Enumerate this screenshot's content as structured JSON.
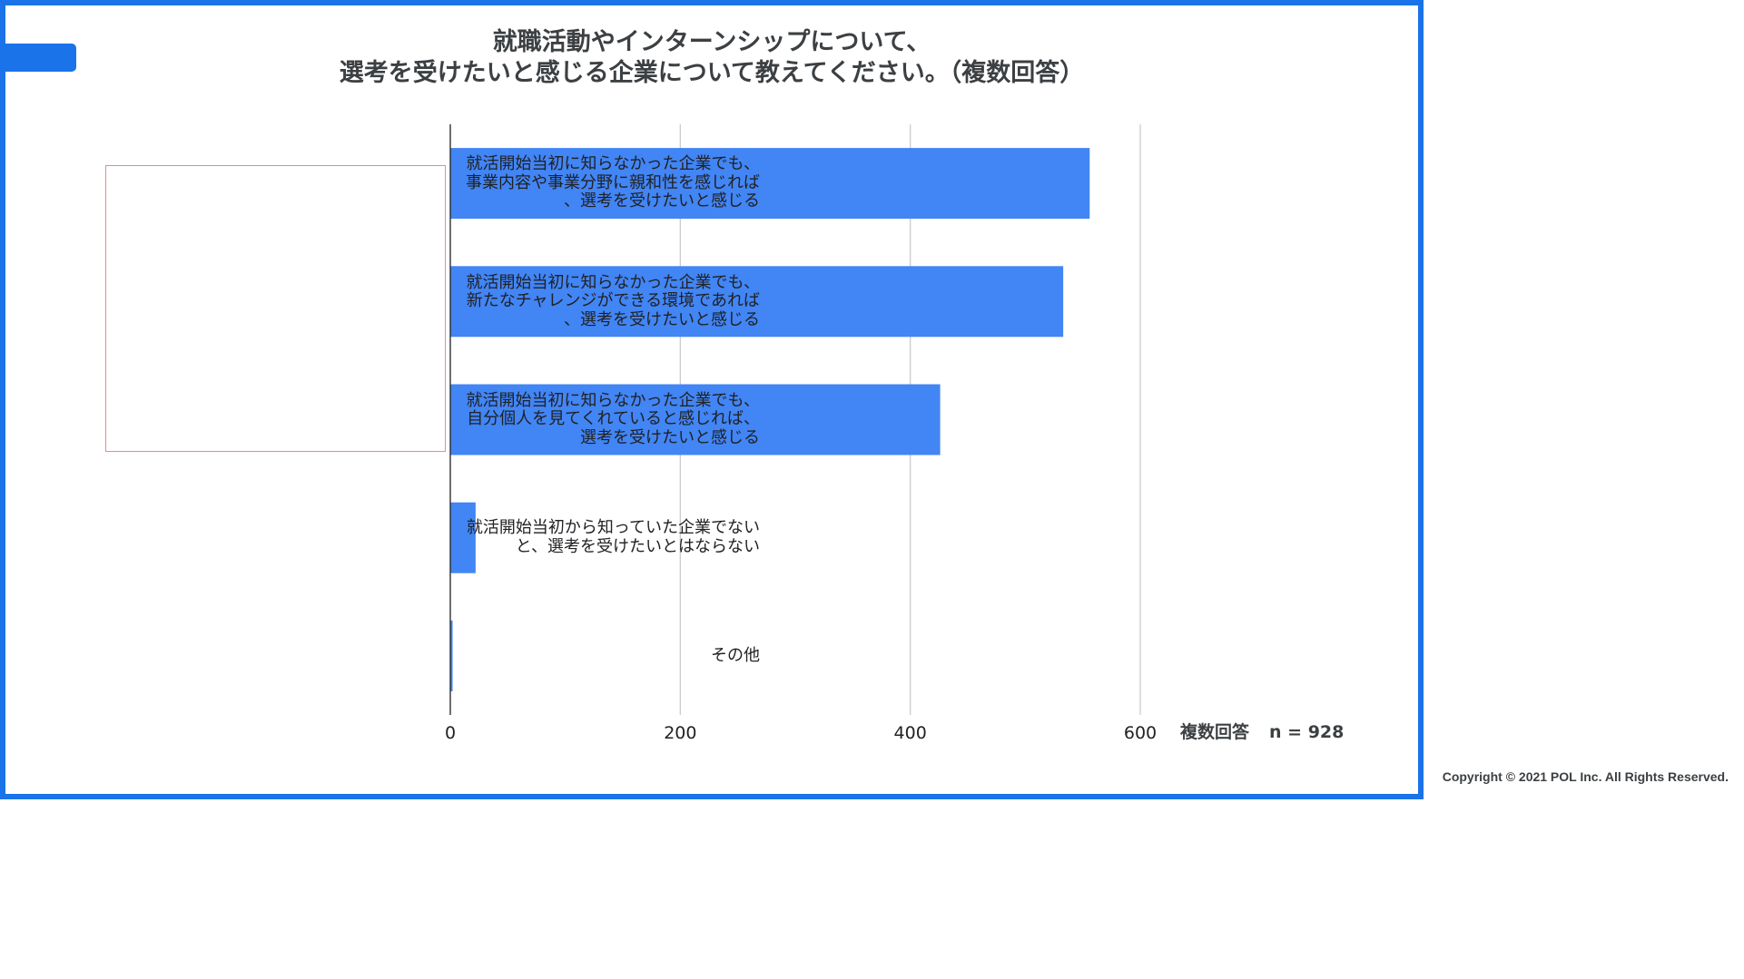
{
  "colors": {
    "frame": "#1a73e8",
    "bar": "#4285f4",
    "highlight_border": "#ea8a8a",
    "grid": "#cccccc"
  },
  "title": {
    "line1": "就職活動やインターンシップについて、",
    "line2": "選考を受けたいと感じる企業について教えてください。（複数回答）"
  },
  "chart_data": {
    "type": "bar",
    "orientation": "horizontal",
    "categories": [
      [
        "就活開始当初に知らなかった企業でも、",
        "事業内容や事業分野に親和性を感じれば",
        "、選考を受けたいと感じる"
      ],
      [
        "就活開始当初に知らなかった企業でも、",
        "新たなチャレンジができる環境であれば",
        "、選考を受けたいと感じる"
      ],
      [
        "就活開始当初に知らなかった企業でも、",
        "自分個人を見てくれていると感じれば、",
        "選考を受けたいと感じる"
      ],
      [
        "就活開始当初から知っていた企業でない",
        "と、選考を受けたいとはならない"
      ],
      [
        "その他"
      ]
    ],
    "values": [
      556,
      533,
      426,
      22,
      2
    ],
    "xlim": [
      0,
      600
    ],
    "xticks": [
      0,
      200,
      400,
      600
    ],
    "grid": "vertical",
    "highlighted_categories": [
      0,
      1,
      2
    ]
  },
  "note": {
    "multi": "複数回答",
    "n": "n = 928"
  },
  "copyright": "Copyright © 2021 POL Inc. All Rights Reserved."
}
